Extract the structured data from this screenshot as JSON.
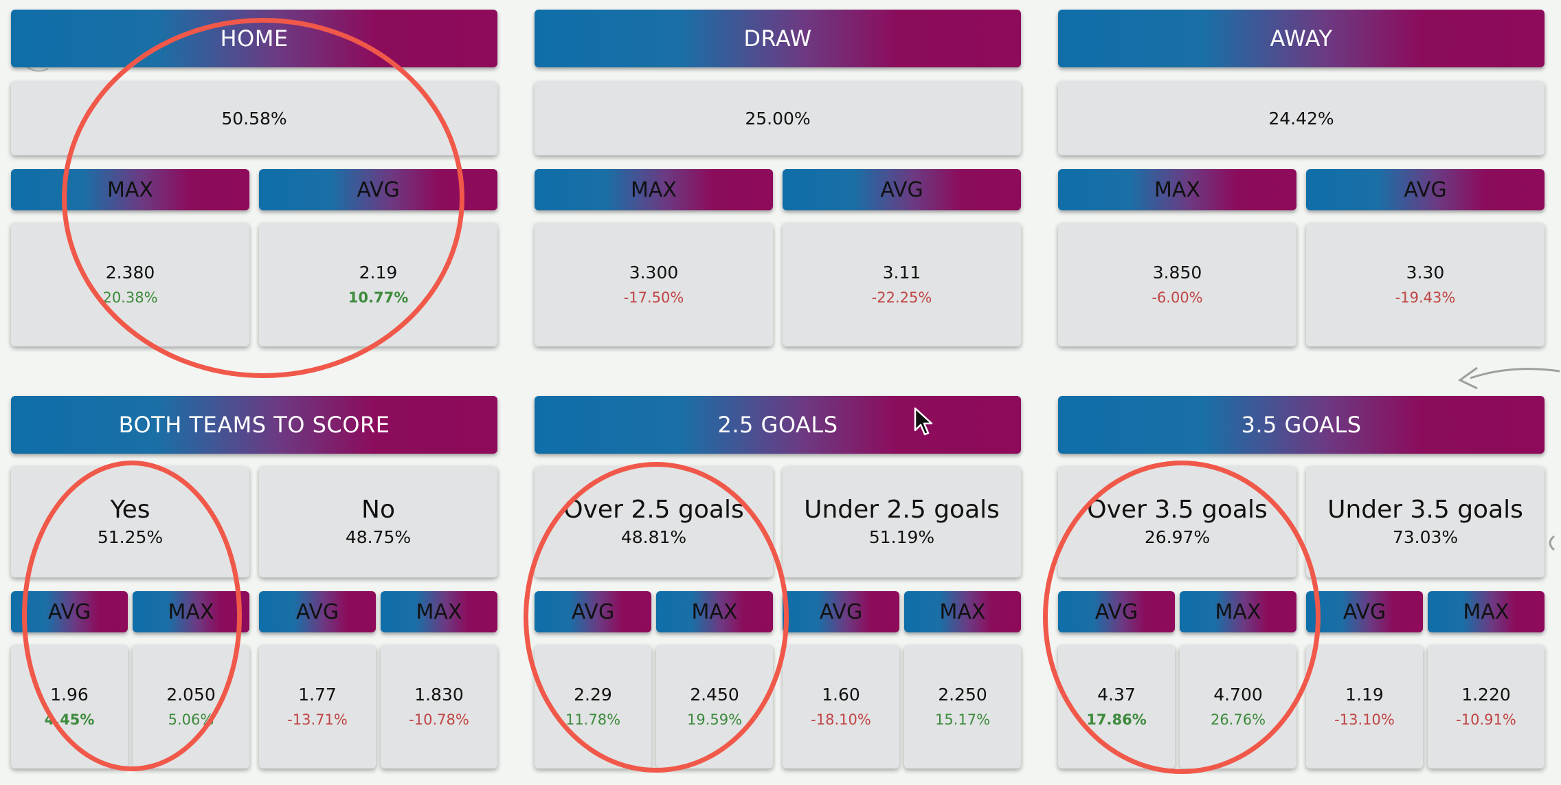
{
  "colors": {
    "gradient_start": "#0f6ea8",
    "gradient_end": "#8e0a5a",
    "positive": "#3c8a3c",
    "negative": "#c04545",
    "highlight_circle": "#f0584a"
  },
  "home": {
    "title": "HOME",
    "probability": "50.58%",
    "max_label": "MAX",
    "avg_label": "AVG",
    "max_odds": "2.380",
    "max_diff": "20.38%",
    "avg_odds": "2.19",
    "avg_diff": "10.77%"
  },
  "draw": {
    "title": "DRAW",
    "probability": "25.00%",
    "max_label": "MAX",
    "avg_label": "AVG",
    "max_odds": "3.300",
    "max_diff": "-17.50%",
    "avg_odds": "3.11",
    "avg_diff": "-22.25%"
  },
  "away": {
    "title": "AWAY",
    "probability": "24.42%",
    "max_label": "MAX",
    "avg_label": "AVG",
    "max_odds": "3.850",
    "max_diff": "-6.00%",
    "avg_odds": "3.30",
    "avg_diff": "-19.43%"
  },
  "btts": {
    "title": "BOTH TEAMS TO SCORE",
    "yes": {
      "label": "Yes",
      "probability": "51.25%",
      "avg_label": "AVG",
      "max_label": "MAX",
      "avg_odds": "1.96",
      "avg_diff": "4.45%",
      "max_odds": "2.050",
      "max_diff": "5.06%"
    },
    "no": {
      "label": "No",
      "probability": "48.75%",
      "avg_label": "AVG",
      "max_label": "MAX",
      "avg_odds": "1.77",
      "avg_diff": "-13.71%",
      "max_odds": "1.830",
      "max_diff": "-10.78%"
    }
  },
  "goals25": {
    "title": "2.5 GOALS",
    "over": {
      "label": "Over 2.5 goals",
      "probability": "48.81%",
      "avg_label": "AVG",
      "max_label": "MAX",
      "avg_odds": "2.29",
      "avg_diff": "11.78%",
      "max_odds": "2.450",
      "max_diff": "19.59%"
    },
    "under": {
      "label": "Under 2.5 goals",
      "probability": "51.19%",
      "avg_label": "AVG",
      "max_label": "MAX",
      "avg_odds": "1.60",
      "avg_diff": "-18.10%",
      "max_odds": "2.250",
      "max_diff": "15.17%"
    }
  },
  "goals35": {
    "title": "3.5 GOALS",
    "over": {
      "label": "Over 3.5 goals",
      "probability": "26.97%",
      "avg_label": "AVG",
      "max_label": "MAX",
      "avg_odds": "4.37",
      "avg_diff": "17.86%",
      "max_odds": "4.700",
      "max_diff": "26.76%"
    },
    "under": {
      "label": "Under 3.5 goals",
      "probability": "73.03%",
      "avg_label": "AVG",
      "max_label": "MAX",
      "avg_odds": "1.19",
      "avg_diff": "-13.10%",
      "max_odds": "1.220",
      "max_diff": "-10.91%"
    }
  },
  "icons": {
    "cursor": "mouse-pointer-icon"
  }
}
